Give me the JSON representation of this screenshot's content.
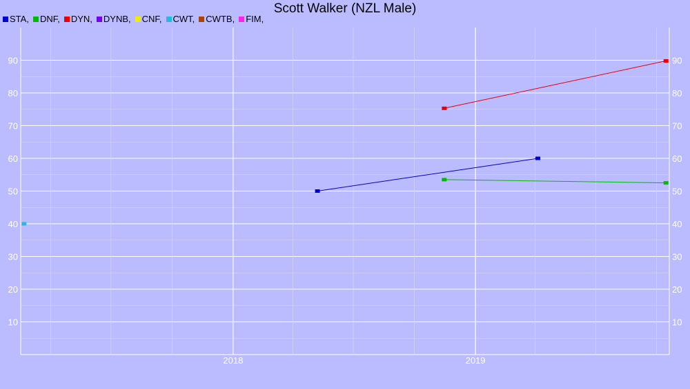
{
  "chart_data": {
    "type": "line",
    "title": "Scott Walker (NZL Male)",
    "xlabel": "",
    "ylabel": "",
    "ylim": [
      0,
      100
    ],
    "y_ticks": [
      10,
      20,
      30,
      40,
      50,
      60,
      70,
      80,
      90
    ],
    "x_ticks": [
      "2018",
      "2019"
    ],
    "x_range": [
      "2017-02-15",
      "2019-10-20"
    ],
    "grid": true,
    "legend_position": "top-left",
    "series": [
      {
        "name": "STA",
        "color": "#0000cc",
        "points": [
          [
            "2018-05-08",
            50
          ],
          [
            "2019-04-05",
            60
          ]
        ]
      },
      {
        "name": "DNF",
        "color": "#00bb00",
        "points": [
          [
            "2018-11-15",
            53.5
          ],
          [
            "2019-10-15",
            52.5
          ]
        ]
      },
      {
        "name": "DYN",
        "color": "#ee0000",
        "points": [
          [
            "2018-11-15",
            75.3
          ],
          [
            "2019-10-15",
            89.8
          ]
        ]
      },
      {
        "name": "DYNB",
        "color": "#7700ee",
        "points": []
      },
      {
        "name": "CNF",
        "color": "#eeee00",
        "points": []
      },
      {
        "name": "CWT",
        "color": "#22bbdd",
        "points": [
          [
            "2017-02-20",
            40
          ]
        ]
      },
      {
        "name": "CWTB",
        "color": "#aa4400",
        "points": []
      },
      {
        "name": "FIM",
        "color": "#ff22ee",
        "points": []
      }
    ]
  }
}
